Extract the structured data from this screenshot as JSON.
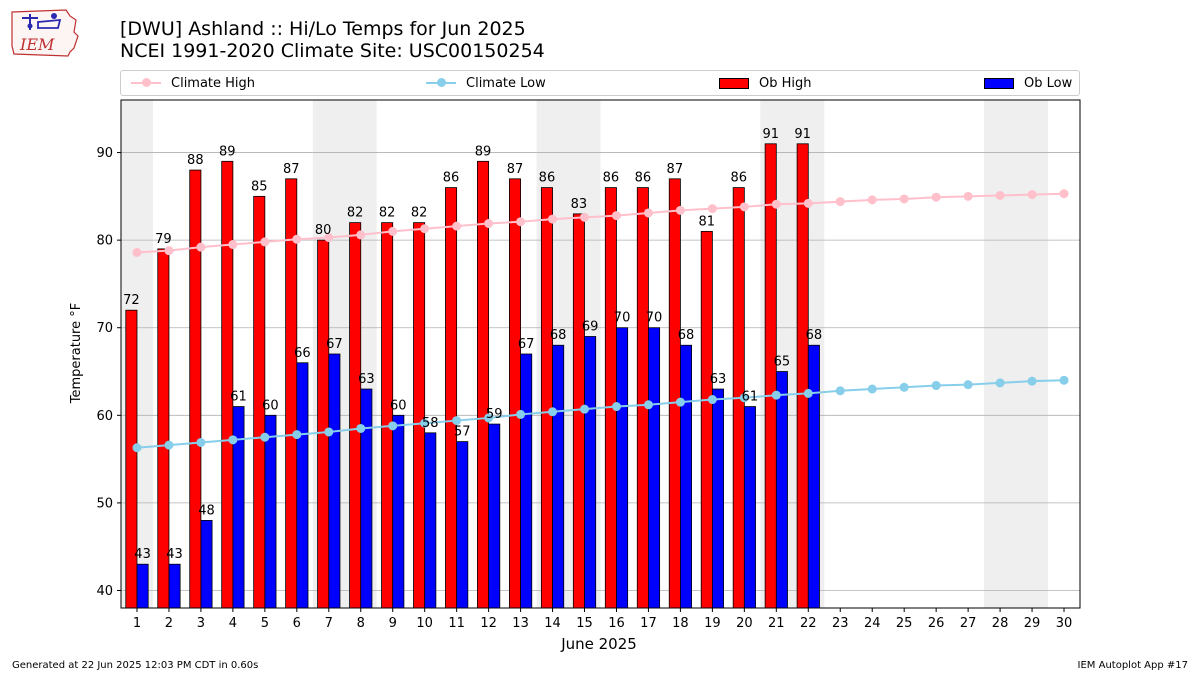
{
  "header": {
    "title_line1": "[DWU] Ashland :: Hi/Lo Temps for Jun 2025",
    "title_line2": "NCEI 1991-2020 Climate Site: USC00150254",
    "logo_text": "IEM"
  },
  "footer": {
    "left": "Generated at 22 Jun 2025 12:03 PM CDT in 0.60s",
    "right": "IEM Autoplot App #17"
  },
  "colors": {
    "ob_high": "#ff0000",
    "ob_low": "#0000ff",
    "climate_high": "#ffc0cb",
    "climate_low": "#87ceeb",
    "weekend_shade": "#efefef",
    "grid": "#b0b0b0"
  },
  "chart_data": {
    "type": "bar",
    "title": "[DWU] Ashland :: Hi/Lo Temps for Jun 2025",
    "xlabel": "June 2025",
    "ylabel": "Temperature °F",
    "xlim": [
      0.5,
      30.5
    ],
    "ylim": [
      38,
      96
    ],
    "yticks": [
      40,
      50,
      60,
      70,
      80,
      90
    ],
    "days": [
      1,
      2,
      3,
      4,
      5,
      6,
      7,
      8,
      9,
      10,
      11,
      12,
      13,
      14,
      15,
      16,
      17,
      18,
      19,
      20,
      21,
      22,
      23,
      24,
      25,
      26,
      27,
      28,
      29,
      30
    ],
    "weekend_spans": [
      [
        1,
        1
      ],
      [
        7,
        8
      ],
      [
        14,
        15
      ],
      [
        21,
        22
      ],
      [
        28,
        29
      ]
    ],
    "legend": [
      "Climate High",
      "Climate Low",
      "Ob High",
      "Ob Low"
    ],
    "series": [
      {
        "name": "Ob High",
        "kind": "bar",
        "values": [
          72,
          79,
          88,
          89,
          85,
          87,
          80,
          82,
          82,
          82,
          86,
          89,
          87,
          86,
          83,
          86,
          86,
          87,
          81,
          86,
          91,
          91
        ]
      },
      {
        "name": "Ob Low",
        "kind": "bar",
        "values": [
          43,
          43,
          48,
          61,
          60,
          66,
          67,
          63,
          60,
          58,
          57,
          59,
          67,
          68,
          69,
          70,
          70,
          68,
          63,
          61,
          65,
          68
        ]
      },
      {
        "name": "Climate High",
        "kind": "line",
        "values": [
          78.6,
          78.8,
          79.2,
          79.5,
          79.8,
          80.1,
          80.3,
          80.6,
          81.0,
          81.3,
          81.6,
          81.9,
          82.1,
          82.4,
          82.6,
          82.8,
          83.1,
          83.4,
          83.6,
          83.8,
          84.1,
          84.2,
          84.4,
          84.6,
          84.7,
          84.9,
          85.0,
          85.1,
          85.2,
          85.3
        ]
      },
      {
        "name": "Climate Low",
        "kind": "line",
        "values": [
          56.3,
          56.6,
          56.9,
          57.2,
          57.5,
          57.8,
          58.1,
          58.5,
          58.8,
          59.1,
          59.4,
          59.7,
          60.1,
          60.4,
          60.7,
          61.0,
          61.2,
          61.5,
          61.8,
          62.0,
          62.3,
          62.5,
          62.8,
          63.0,
          63.2,
          63.4,
          63.5,
          63.7,
          63.9,
          64.0
        ]
      }
    ]
  }
}
